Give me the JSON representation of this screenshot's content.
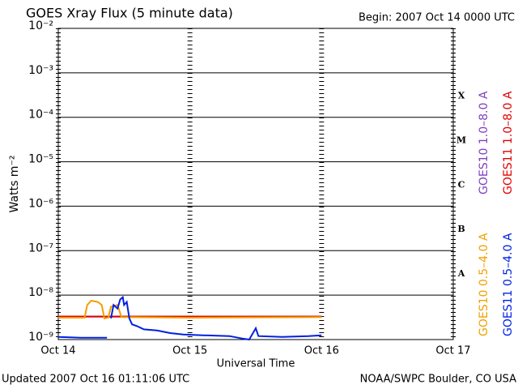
{
  "chart_data": {
    "type": "line",
    "title": "GOES Xray Flux (5 minute data)",
    "subtitle": "Begin:  2007 Oct 14 0000 UTC",
    "x_label": "Universal Time",
    "y_label": "Watts m⁻²",
    "footer_left": "Updated 2007 Oct 16 01:11:06 UTC",
    "footer_right": "NOAA/SWPC Boulder, CO USA",
    "log_y": true,
    "grid": true,
    "xlim": [
      0,
      3
    ],
    "xticks": [
      {
        "value": 0,
        "label": "Oct 14"
      },
      {
        "value": 1,
        "label": "Oct 15"
      },
      {
        "value": 2,
        "label": "Oct 16"
      },
      {
        "value": 3,
        "label": "Oct 17"
      }
    ],
    "ylim": [
      1e-09,
      0.01
    ],
    "yticks": [
      {
        "value": 1e-09,
        "label": "10⁻⁹"
      },
      {
        "value": 1e-08,
        "label": "10⁻⁸"
      },
      {
        "value": 1e-07,
        "label": "10⁻⁷"
      },
      {
        "value": 1e-06,
        "label": "10⁻⁶"
      },
      {
        "value": 1e-05,
        "label": "10⁻⁵"
      },
      {
        "value": 0.0001,
        "label": "10⁻⁴"
      },
      {
        "value": 0.001,
        "label": "10⁻³"
      },
      {
        "value": 0.01,
        "label": "10⁻²"
      }
    ],
    "classes": [
      {
        "label": "A",
        "value": 3e-08
      },
      {
        "label": "B",
        "value": 3e-07
      },
      {
        "label": "C",
        "value": 3e-06
      },
      {
        "label": "M",
        "value": 3e-05
      },
      {
        "label": "X",
        "value": 0.0003
      }
    ],
    "series": [
      {
        "name": "GOES10 1.0–8.0 A",
        "color": "#8040c0",
        "x": [
          0,
          2
        ],
        "values": [
          3.3e-09,
          3.3e-09
        ]
      },
      {
        "name": "GOES11 1.0–8.0 A",
        "color": "#e00000",
        "x": [
          0,
          2
        ],
        "values": [
          3.3e-09,
          3.3e-09
        ]
      },
      {
        "name": "GOES10 0.5–4.0 A",
        "color": "#f0a000",
        "x": [
          0,
          0.2,
          0.22,
          0.25,
          0.3,
          0.33,
          0.35,
          0.38,
          0.4,
          0.45,
          0.48,
          1.0,
          2.0
        ],
        "values": [
          3.1e-09,
          3.1e-09,
          6e-09,
          7.5e-09,
          7e-09,
          6e-09,
          3e-09,
          3.1e-09,
          5.5e-09,
          6e-09,
          3.2e-09,
          3.1e-09,
          3.2e-09
        ]
      },
      {
        "name": "GOES11 0.5–4.0 A",
        "color": "#0020e0",
        "x": [
          0,
          0.17,
          0.37,
          0.38,
          0.4,
          0.42,
          0.45,
          0.47,
          0.49,
          0.5,
          0.52,
          0.54,
          0.56,
          0.6,
          0.65,
          0.75,
          0.85,
          0.95,
          1.1,
          1.3,
          1.4,
          1.45,
          1.5,
          1.52,
          1.7,
          1.9,
          2.0
        ],
        "values": [
          1.15e-09,
          1.1e-09,
          1.1e-09,
          null,
          3e-09,
          6e-09,
          5e-09,
          8e-09,
          9e-09,
          6e-09,
          7e-09,
          3e-09,
          2.2e-09,
          2e-09,
          1.7e-09,
          1.6e-09,
          1.4e-09,
          1.3e-09,
          1.25e-09,
          1.2e-09,
          1.05e-09,
          1e-09,
          1.8e-09,
          1.2e-09,
          1.15e-09,
          1.2e-09,
          1.25e-09
        ]
      }
    ]
  }
}
